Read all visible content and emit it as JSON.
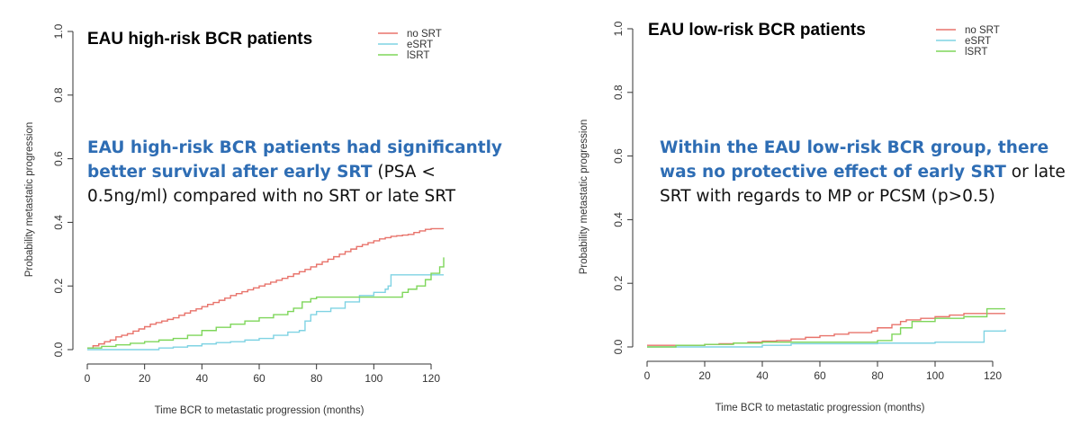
{
  "chart_data": [
    {
      "type": "line",
      "title": "EAU high-risk BCR patients",
      "xlabel": "Time BCR to metastatic progression (months)",
      "ylabel": "Probability metastatic progression",
      "xlim": [
        0,
        125
      ],
      "ylim": [
        0,
        1
      ],
      "xticks": [
        "0",
        "20",
        "40",
        "60",
        "80",
        "100",
        "120"
      ],
      "yticks": [
        "0.0",
        "0.2",
        "0.4",
        "0.6",
        "0.8",
        "1.0"
      ],
      "legend_position": "top-right",
      "callout": {
        "highlight": "EAU high-risk BCR patients had significantly better survival after early SRT",
        "rest": " (PSA < 0.5ng/ml) compared with no SRT or late SRT"
      },
      "series": [
        {
          "name": "no SRT",
          "color": "#e8736b",
          "x": [
            0,
            2,
            4,
            6,
            8,
            10,
            12,
            14,
            16,
            18,
            20,
            22,
            24,
            26,
            28,
            30,
            32,
            34,
            36,
            38,
            40,
            42,
            44,
            46,
            48,
            50,
            52,
            54,
            56,
            58,
            60,
            62,
            64,
            66,
            68,
            70,
            72,
            74,
            76,
            78,
            80,
            82,
            84,
            86,
            88,
            90,
            92,
            94,
            96,
            98,
            100,
            102,
            104,
            106,
            108,
            110,
            112,
            114,
            116,
            118,
            120,
            125
          ],
          "y": [
            0.005,
            0.012,
            0.018,
            0.025,
            0.03,
            0.04,
            0.045,
            0.05,
            0.058,
            0.065,
            0.072,
            0.08,
            0.085,
            0.09,
            0.095,
            0.1,
            0.108,
            0.115,
            0.122,
            0.128,
            0.135,
            0.142,
            0.148,
            0.155,
            0.162,
            0.17,
            0.176,
            0.182,
            0.188,
            0.194,
            0.2,
            0.206,
            0.212,
            0.218,
            0.224,
            0.23,
            0.238,
            0.245,
            0.252,
            0.26,
            0.268,
            0.276,
            0.284,
            0.292,
            0.3,
            0.308,
            0.316,
            0.324,
            0.33,
            0.336,
            0.342,
            0.348,
            0.352,
            0.356,
            0.358,
            0.36,
            0.362,
            0.368,
            0.373,
            0.378,
            0.38,
            0.38
          ]
        },
        {
          "name": "eSRT",
          "color": "#7fd3e3",
          "x": [
            0,
            5,
            10,
            15,
            20,
            25,
            30,
            35,
            40,
            45,
            50,
            55,
            60,
            65,
            70,
            74,
            76,
            78,
            80,
            85,
            90,
            95,
            100,
            104,
            105,
            106,
            110,
            120,
            125
          ],
          "y": [
            0.0,
            0.0,
            0.0,
            0.0,
            0.0,
            0.005,
            0.008,
            0.012,
            0.018,
            0.022,
            0.025,
            0.03,
            0.035,
            0.045,
            0.055,
            0.06,
            0.09,
            0.11,
            0.12,
            0.13,
            0.15,
            0.17,
            0.18,
            0.19,
            0.2,
            0.235,
            0.235,
            0.235,
            0.235
          ]
        },
        {
          "name": "lSRT",
          "color": "#7ed65a",
          "x": [
            0,
            5,
            10,
            15,
            20,
            25,
            30,
            35,
            40,
            45,
            50,
            55,
            60,
            65,
            70,
            72,
            75,
            78,
            80,
            85,
            90,
            95,
            100,
            105,
            110,
            112,
            115,
            118,
            120,
            123,
            125
          ],
          "y": [
            0.005,
            0.01,
            0.015,
            0.02,
            0.025,
            0.03,
            0.035,
            0.045,
            0.06,
            0.07,
            0.08,
            0.09,
            0.1,
            0.11,
            0.12,
            0.13,
            0.15,
            0.16,
            0.165,
            0.165,
            0.165,
            0.165,
            0.165,
            0.165,
            0.18,
            0.19,
            0.2,
            0.22,
            0.24,
            0.26,
            0.29
          ]
        }
      ]
    },
    {
      "type": "line",
      "title": "EAU low-risk BCR patients",
      "xlabel": "Time BCR to metastatic progression (months)",
      "ylabel": "Probability metastatic progression",
      "xlim": [
        0,
        125
      ],
      "ylim": [
        0,
        1
      ],
      "xticks": [
        "0",
        "20",
        "40",
        "60",
        "80",
        "100",
        "120"
      ],
      "yticks": [
        "0.0",
        "0.2",
        "0.4",
        "0.6",
        "0.8",
        "1.0"
      ],
      "legend_position": "top-right",
      "callout": {
        "highlight": "Within the EAU low-risk BCR group, there was no protective effect of early SRT",
        "rest": " or late SRT with regards to MP or PCSM (p>0.5)"
      },
      "series": [
        {
          "name": "no SRT",
          "color": "#e8736b",
          "x": [
            0,
            10,
            20,
            25,
            30,
            35,
            40,
            45,
            50,
            55,
            60,
            65,
            70,
            75,
            78,
            80,
            85,
            88,
            90,
            95,
            100,
            105,
            110,
            115,
            120,
            125
          ],
          "y": [
            0.005,
            0.005,
            0.008,
            0.01,
            0.012,
            0.015,
            0.018,
            0.02,
            0.025,
            0.03,
            0.035,
            0.04,
            0.045,
            0.045,
            0.05,
            0.06,
            0.07,
            0.08,
            0.085,
            0.09,
            0.095,
            0.1,
            0.105,
            0.105,
            0.105,
            0.105
          ]
        },
        {
          "name": "eSRT",
          "color": "#7fd3e3",
          "x": [
            0,
            20,
            40,
            50,
            60,
            80,
            100,
            115,
            117,
            125
          ],
          "y": [
            0.0,
            0.0,
            0.005,
            0.01,
            0.01,
            0.012,
            0.015,
            0.015,
            0.05,
            0.055
          ]
        },
        {
          "name": "lSRT",
          "color": "#7ed65a",
          "x": [
            0,
            10,
            20,
            30,
            40,
            50,
            60,
            70,
            80,
            85,
            88,
            92,
            100,
            110,
            118,
            125
          ],
          "y": [
            0.0,
            0.005,
            0.008,
            0.012,
            0.015,
            0.015,
            0.015,
            0.015,
            0.02,
            0.04,
            0.06,
            0.08,
            0.09,
            0.095,
            0.12,
            0.12
          ]
        }
      ]
    }
  ]
}
